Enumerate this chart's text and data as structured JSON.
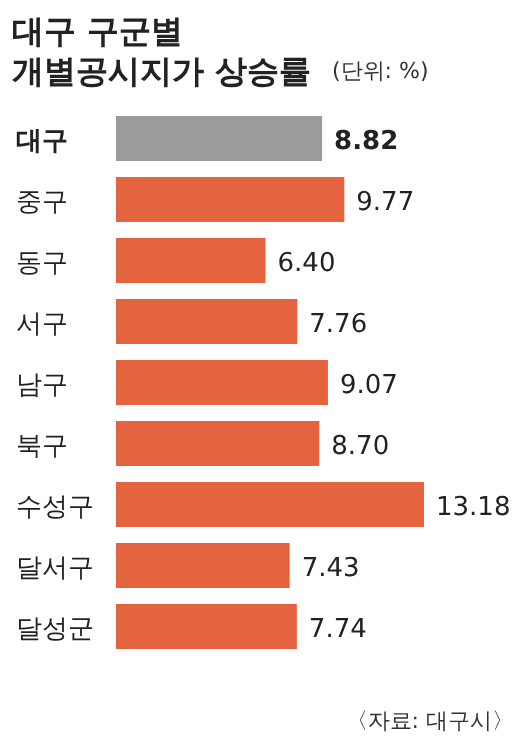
{
  "chart_data": {
    "type": "bar",
    "orientation": "horizontal",
    "title": "대구 구군별 개별공시지가 상승률",
    "subtitle": "(단위: %)",
    "categories": [
      "대구",
      "중구",
      "동구",
      "서구",
      "남구",
      "북구",
      "수성구",
      "달서구",
      "달성군"
    ],
    "values": [
      8.82,
      9.77,
      6.4,
      7.76,
      9.07,
      8.7,
      13.18,
      7.43,
      7.74
    ],
    "colors": [
      "#9b9b9b",
      "#e4643f",
      "#e4643f",
      "#e4643f",
      "#e4643f",
      "#e4643f",
      "#e4643f",
      "#e4643f",
      "#e4643f"
    ],
    "value_labels": [
      "8.82",
      "9.77",
      "6.40",
      "7.76",
      "9.07",
      "8.70",
      "13.18",
      "7.43",
      "7.74"
    ],
    "annotations": [
      "〈자료: 대구시〉"
    ]
  }
}
